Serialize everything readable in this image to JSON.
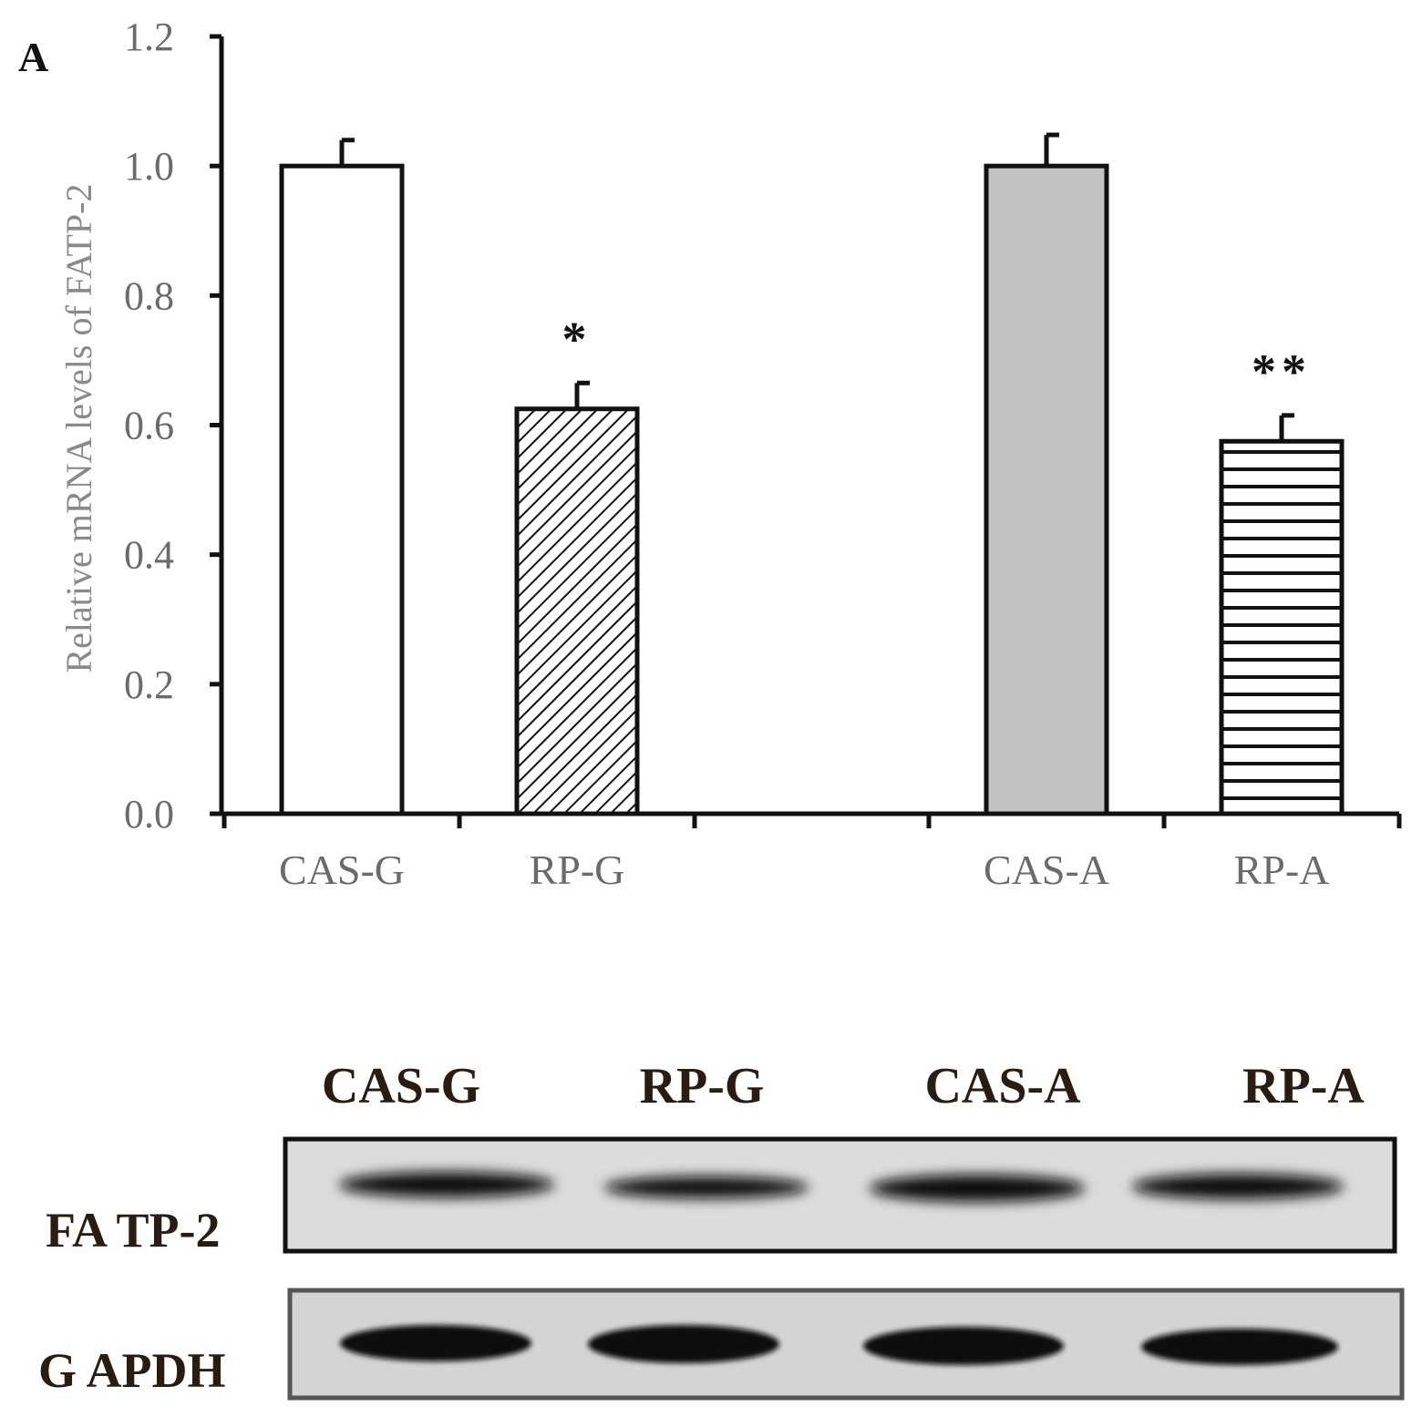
{
  "panel_label": "A",
  "chart_data": {
    "type": "bar",
    "ylabel": "Relative mRNA levels of FATP-2",
    "xlabel": "",
    "ylim": [
      0,
      1.2
    ],
    "yticks": [
      "0.0",
      "0.2",
      "0.4",
      "0.6",
      "0.8",
      "1.0",
      "1.2"
    ],
    "categories": [
      "CAS-G",
      "RP-G",
      "CAS-A",
      "RP-A"
    ],
    "values": [
      1.0,
      0.625,
      1.0,
      0.575
    ],
    "errors": [
      0.04,
      0.04,
      0.048,
      0.04
    ],
    "significance": [
      "",
      "*",
      "",
      "**"
    ],
    "fills": [
      "#ffffff",
      "diagonal-hatch",
      "#c2c2c2",
      "horizontal-hatch"
    ]
  },
  "blot": {
    "lanes": [
      "CAS-G",
      "RP-G",
      "CAS-A",
      "RP-A"
    ],
    "rows": [
      {
        "label": "FA TP-2"
      },
      {
        "label": "G APDH"
      }
    ]
  }
}
